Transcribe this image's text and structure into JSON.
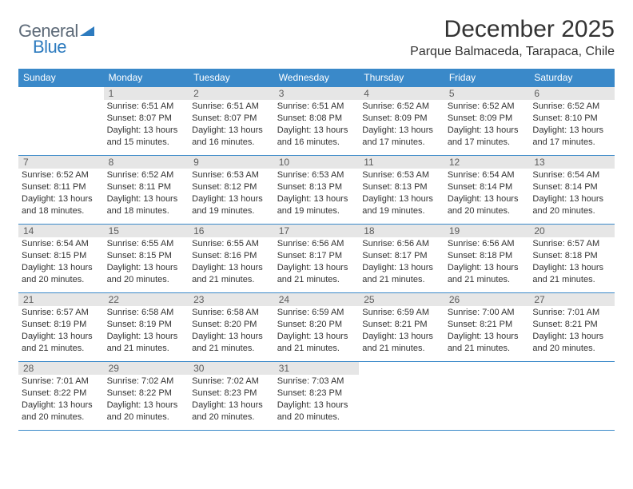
{
  "brand": {
    "name1": "General",
    "name2": "Blue"
  },
  "title": "December 2025",
  "subtitle": "Parque Balmaceda, Tarapaca, Chile",
  "colors": {
    "header_bg": "#3a89c9",
    "header_text": "#ffffff",
    "daynum_bg": "#e6e6e6",
    "daynum_text": "#5c5c5c",
    "body_text": "#333333",
    "brand_gray": "#5d6a78",
    "brand_blue": "#2d7bbf",
    "border": "#3a89c9",
    "background": "#ffffff"
  },
  "typography": {
    "title_fontsize": 30,
    "subtitle_fontsize": 16,
    "header_fontsize": 12,
    "daynum_fontsize": 12,
    "info_fontsize": 11
  },
  "weekdays": [
    "Sunday",
    "Monday",
    "Tuesday",
    "Wednesday",
    "Thursday",
    "Friday",
    "Saturday"
  ],
  "weeks": [
    [
      {
        "day": "",
        "sunrise": "",
        "sunset": "",
        "daylight": ""
      },
      {
        "day": "1",
        "sunrise": "Sunrise: 6:51 AM",
        "sunset": "Sunset: 8:07 PM",
        "daylight": "Daylight: 13 hours and 15 minutes."
      },
      {
        "day": "2",
        "sunrise": "Sunrise: 6:51 AM",
        "sunset": "Sunset: 8:07 PM",
        "daylight": "Daylight: 13 hours and 16 minutes."
      },
      {
        "day": "3",
        "sunrise": "Sunrise: 6:51 AM",
        "sunset": "Sunset: 8:08 PM",
        "daylight": "Daylight: 13 hours and 16 minutes."
      },
      {
        "day": "4",
        "sunrise": "Sunrise: 6:52 AM",
        "sunset": "Sunset: 8:09 PM",
        "daylight": "Daylight: 13 hours and 17 minutes."
      },
      {
        "day": "5",
        "sunrise": "Sunrise: 6:52 AM",
        "sunset": "Sunset: 8:09 PM",
        "daylight": "Daylight: 13 hours and 17 minutes."
      },
      {
        "day": "6",
        "sunrise": "Sunrise: 6:52 AM",
        "sunset": "Sunset: 8:10 PM",
        "daylight": "Daylight: 13 hours and 17 minutes."
      }
    ],
    [
      {
        "day": "7",
        "sunrise": "Sunrise: 6:52 AM",
        "sunset": "Sunset: 8:11 PM",
        "daylight": "Daylight: 13 hours and 18 minutes."
      },
      {
        "day": "8",
        "sunrise": "Sunrise: 6:52 AM",
        "sunset": "Sunset: 8:11 PM",
        "daylight": "Daylight: 13 hours and 18 minutes."
      },
      {
        "day": "9",
        "sunrise": "Sunrise: 6:53 AM",
        "sunset": "Sunset: 8:12 PM",
        "daylight": "Daylight: 13 hours and 19 minutes."
      },
      {
        "day": "10",
        "sunrise": "Sunrise: 6:53 AM",
        "sunset": "Sunset: 8:13 PM",
        "daylight": "Daylight: 13 hours and 19 minutes."
      },
      {
        "day": "11",
        "sunrise": "Sunrise: 6:53 AM",
        "sunset": "Sunset: 8:13 PM",
        "daylight": "Daylight: 13 hours and 19 minutes."
      },
      {
        "day": "12",
        "sunrise": "Sunrise: 6:54 AM",
        "sunset": "Sunset: 8:14 PM",
        "daylight": "Daylight: 13 hours and 20 minutes."
      },
      {
        "day": "13",
        "sunrise": "Sunrise: 6:54 AM",
        "sunset": "Sunset: 8:14 PM",
        "daylight": "Daylight: 13 hours and 20 minutes."
      }
    ],
    [
      {
        "day": "14",
        "sunrise": "Sunrise: 6:54 AM",
        "sunset": "Sunset: 8:15 PM",
        "daylight": "Daylight: 13 hours and 20 minutes."
      },
      {
        "day": "15",
        "sunrise": "Sunrise: 6:55 AM",
        "sunset": "Sunset: 8:15 PM",
        "daylight": "Daylight: 13 hours and 20 minutes."
      },
      {
        "day": "16",
        "sunrise": "Sunrise: 6:55 AM",
        "sunset": "Sunset: 8:16 PM",
        "daylight": "Daylight: 13 hours and 21 minutes."
      },
      {
        "day": "17",
        "sunrise": "Sunrise: 6:56 AM",
        "sunset": "Sunset: 8:17 PM",
        "daylight": "Daylight: 13 hours and 21 minutes."
      },
      {
        "day": "18",
        "sunrise": "Sunrise: 6:56 AM",
        "sunset": "Sunset: 8:17 PM",
        "daylight": "Daylight: 13 hours and 21 minutes."
      },
      {
        "day": "19",
        "sunrise": "Sunrise: 6:56 AM",
        "sunset": "Sunset: 8:18 PM",
        "daylight": "Daylight: 13 hours and 21 minutes."
      },
      {
        "day": "20",
        "sunrise": "Sunrise: 6:57 AM",
        "sunset": "Sunset: 8:18 PM",
        "daylight": "Daylight: 13 hours and 21 minutes."
      }
    ],
    [
      {
        "day": "21",
        "sunrise": "Sunrise: 6:57 AM",
        "sunset": "Sunset: 8:19 PM",
        "daylight": "Daylight: 13 hours and 21 minutes."
      },
      {
        "day": "22",
        "sunrise": "Sunrise: 6:58 AM",
        "sunset": "Sunset: 8:19 PM",
        "daylight": "Daylight: 13 hours and 21 minutes."
      },
      {
        "day": "23",
        "sunrise": "Sunrise: 6:58 AM",
        "sunset": "Sunset: 8:20 PM",
        "daylight": "Daylight: 13 hours and 21 minutes."
      },
      {
        "day": "24",
        "sunrise": "Sunrise: 6:59 AM",
        "sunset": "Sunset: 8:20 PM",
        "daylight": "Daylight: 13 hours and 21 minutes."
      },
      {
        "day": "25",
        "sunrise": "Sunrise: 6:59 AM",
        "sunset": "Sunset: 8:21 PM",
        "daylight": "Daylight: 13 hours and 21 minutes."
      },
      {
        "day": "26",
        "sunrise": "Sunrise: 7:00 AM",
        "sunset": "Sunset: 8:21 PM",
        "daylight": "Daylight: 13 hours and 21 minutes."
      },
      {
        "day": "27",
        "sunrise": "Sunrise: 7:01 AM",
        "sunset": "Sunset: 8:21 PM",
        "daylight": "Daylight: 13 hours and 20 minutes."
      }
    ],
    [
      {
        "day": "28",
        "sunrise": "Sunrise: 7:01 AM",
        "sunset": "Sunset: 8:22 PM",
        "daylight": "Daylight: 13 hours and 20 minutes."
      },
      {
        "day": "29",
        "sunrise": "Sunrise: 7:02 AM",
        "sunset": "Sunset: 8:22 PM",
        "daylight": "Daylight: 13 hours and 20 minutes."
      },
      {
        "day": "30",
        "sunrise": "Sunrise: 7:02 AM",
        "sunset": "Sunset: 8:23 PM",
        "daylight": "Daylight: 13 hours and 20 minutes."
      },
      {
        "day": "31",
        "sunrise": "Sunrise: 7:03 AM",
        "sunset": "Sunset: 8:23 PM",
        "daylight": "Daylight: 13 hours and 20 minutes."
      },
      {
        "day": "",
        "sunrise": "",
        "sunset": "",
        "daylight": ""
      },
      {
        "day": "",
        "sunrise": "",
        "sunset": "",
        "daylight": ""
      },
      {
        "day": "",
        "sunrise": "",
        "sunset": "",
        "daylight": ""
      }
    ]
  ]
}
